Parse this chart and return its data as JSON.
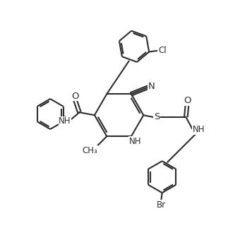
{
  "background_color": "#ffffff",
  "line_color": "#2d2d2d",
  "line_width": 1.5,
  "font_size": 8.5,
  "figsize": [
    3.57,
    3.33
  ],
  "dpi": 100,
  "xlim": [
    0,
    10
  ],
  "ylim": [
    0,
    10
  ]
}
